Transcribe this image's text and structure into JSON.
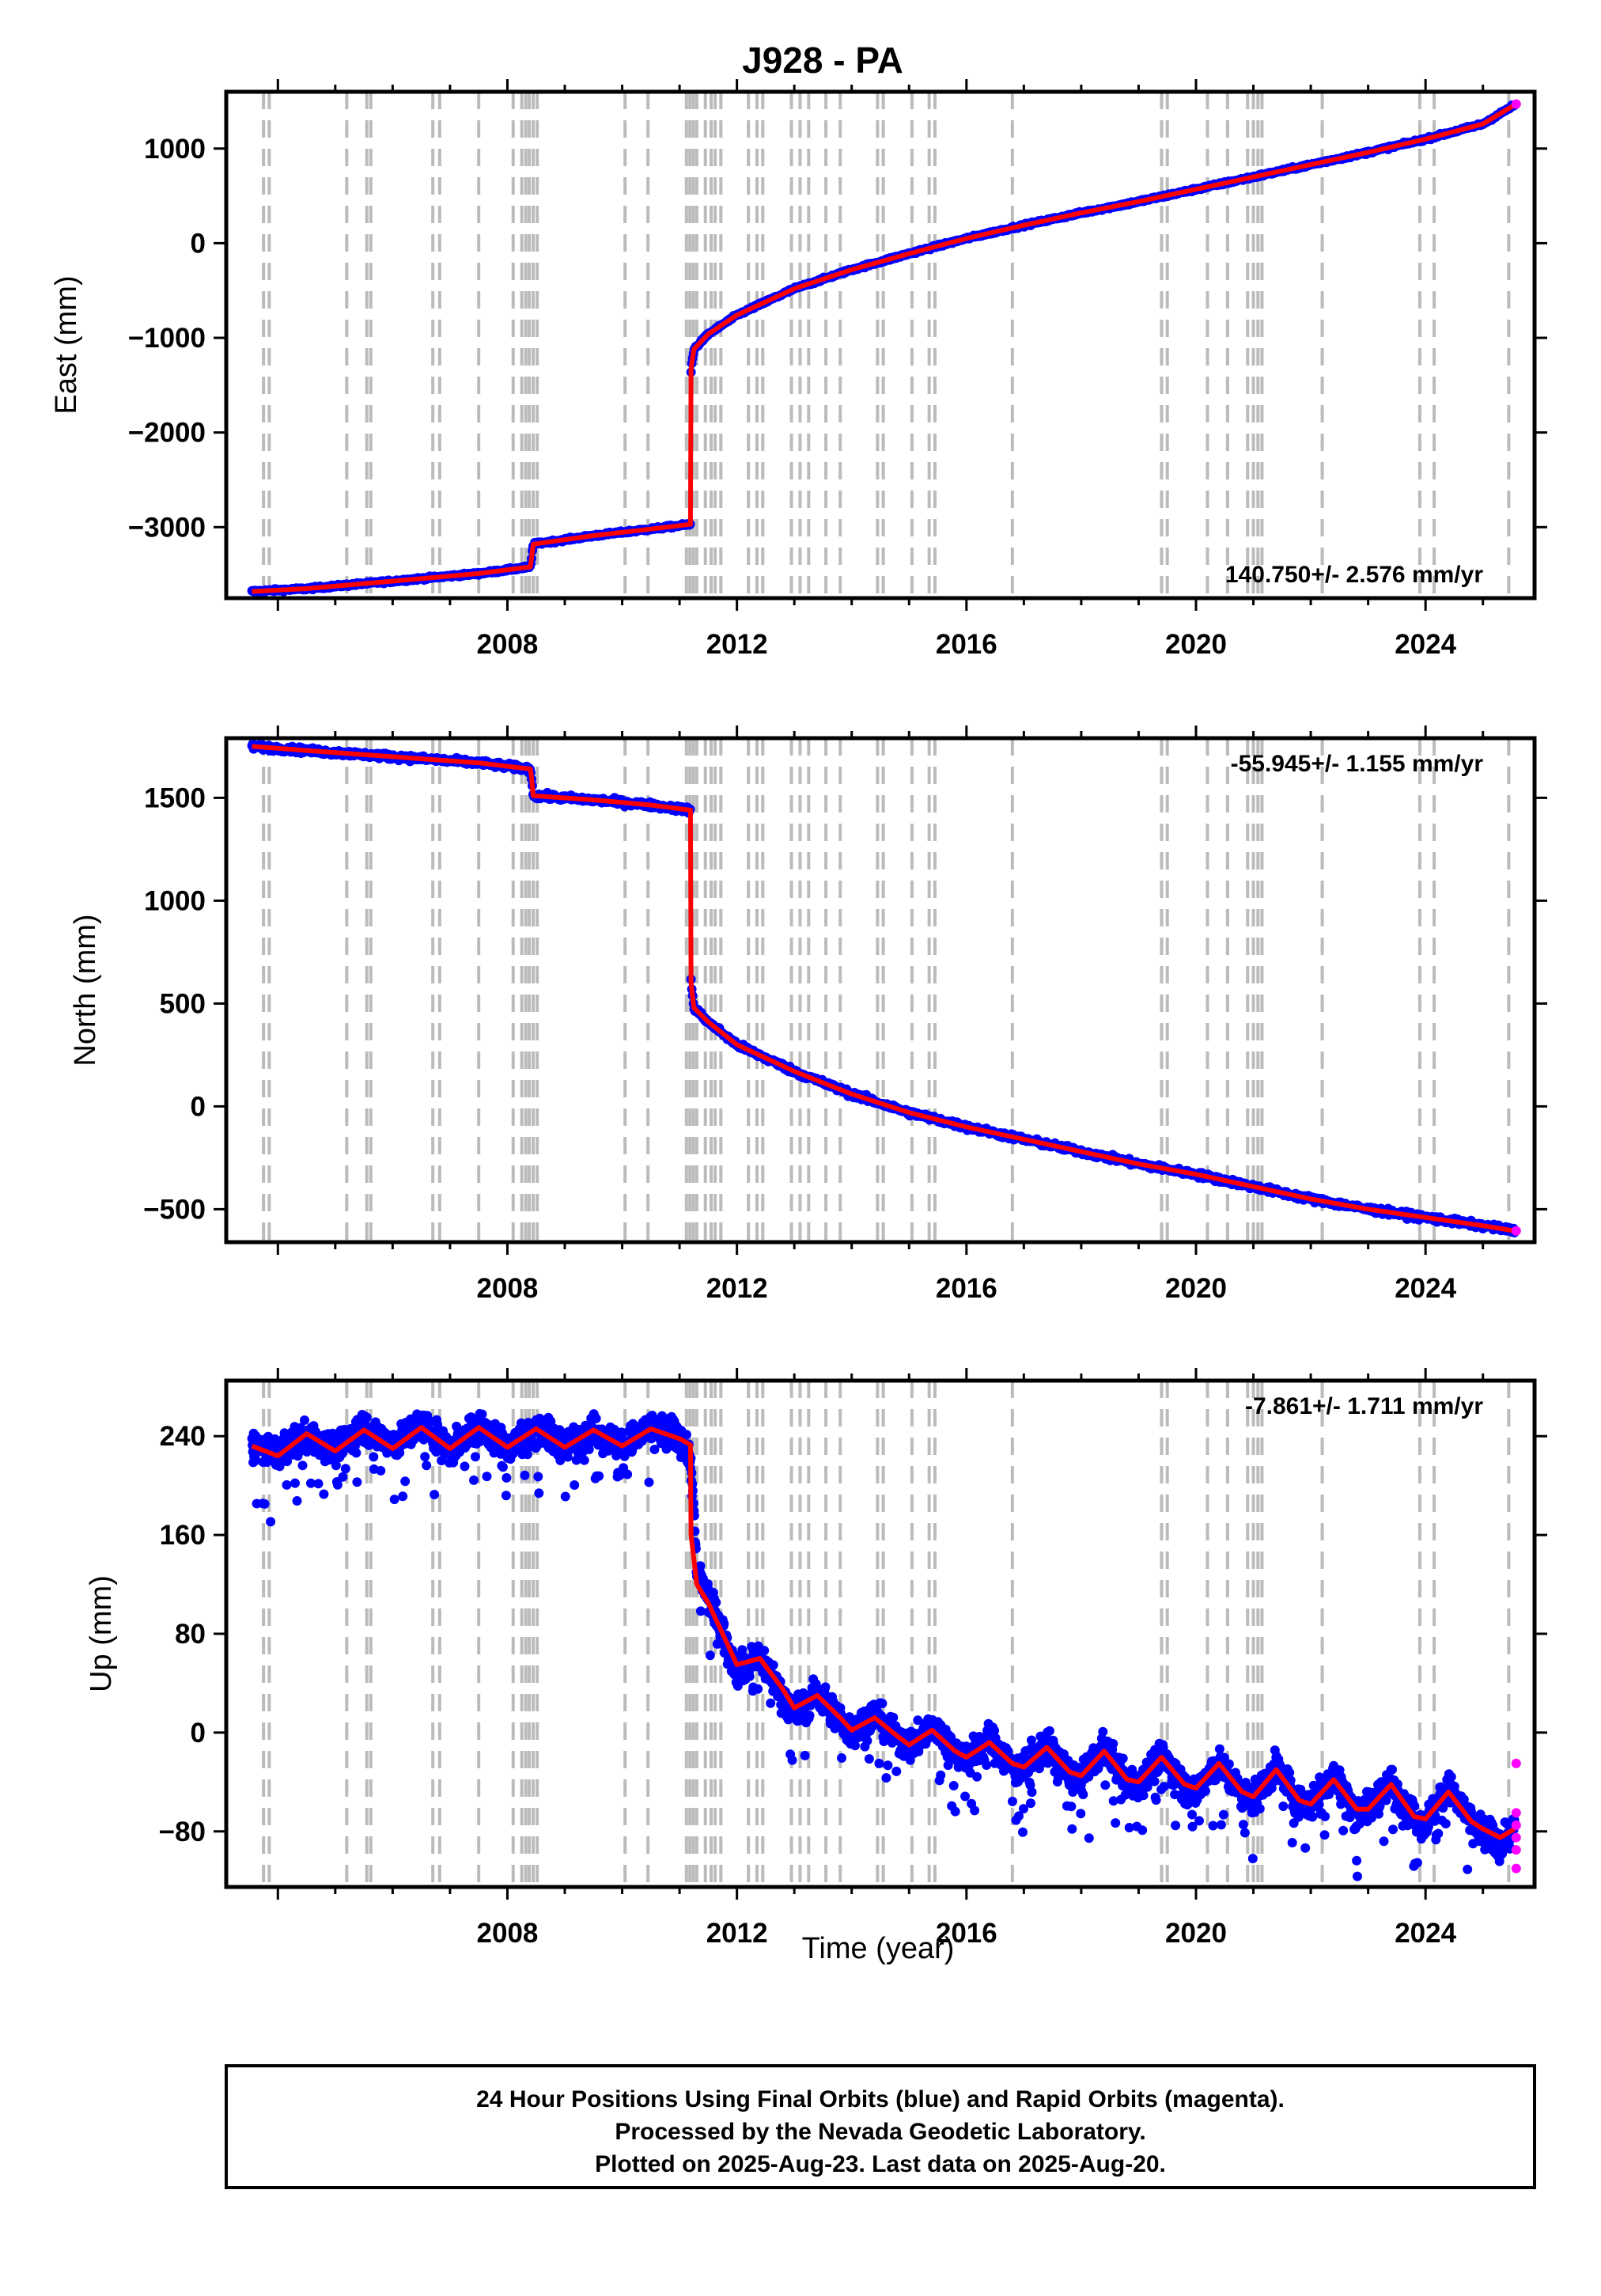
{
  "title": "J928 - PA",
  "xlabel": "Time (year)",
  "footer": {
    "line1": "24 Hour Positions Using Final Orbits (blue) and Rapid Orbits (magenta).",
    "line2": "Processed by the Nevada Geodetic Laboratory.",
    "line3": "Plotted on 2025-Aug-23. Last data on 2025-Aug-20."
  },
  "colors": {
    "final_orbits": "#0000ff",
    "rapid_orbits": "#ff00ff",
    "model_fit": "#ff0000",
    "event_lines": "#bbbbbb",
    "frame": "#000000"
  },
  "chart_data": [
    {
      "type": "scatter",
      "panel": "east",
      "ylabel": "East (mm)",
      "rate_label": "140.750+/- 2.576 mm/yr",
      "xlim": [
        2003.1,
        2025.9
      ],
      "ylim": [
        -3750,
        1600
      ],
      "xticks": [
        2008,
        2012,
        2016,
        2020,
        2024
      ],
      "yticks": [
        1000,
        0,
        -1000,
        -2000,
        -3000
      ],
      "ytick_labels": [
        "1000",
        "0",
        "−1000",
        "−2000",
        "−3000"
      ],
      "series": [
        {
          "role": "final orbits, model fit",
          "x": [
            2003.55,
            2004.5,
            2006.0,
            2007.5,
            2008.4,
            2008.42,
            2008.45,
            2009.5,
            2010.5,
            2011.19,
            2011.2,
            2011.25,
            2011.5,
            2012.0,
            2013.0,
            2014.0,
            2015.0,
            2016.0,
            2017.0,
            2018.0,
            2019.0,
            2020.0,
            2021.0,
            2022.0,
            2023.0,
            2024.0,
            2025.0,
            2025.55
          ],
          "y": [
            -3680,
            -3650,
            -3570,
            -3490,
            -3420,
            -3330,
            -3180,
            -3090,
            -3020,
            -2970,
            -1330,
            -1120,
            -960,
            -760,
            -480,
            -280,
            -110,
            50,
            190,
            320,
            440,
            570,
            700,
            830,
            960,
            1100,
            1260,
            1460
          ]
        },
        {
          "role": "rapid orbits",
          "x": [
            2025.58
          ],
          "y": [
            1470
          ]
        }
      ]
    },
    {
      "type": "scatter",
      "panel": "north",
      "ylabel": "North (mm)",
      "rate_label": "-55.945+/- 1.155 mm/yr",
      "xlim": [
        2003.1,
        2025.9
      ],
      "ylim": [
        -660,
        1790
      ],
      "xticks": [
        2008,
        2012,
        2016,
        2020,
        2024
      ],
      "yticks": [
        1500,
        1000,
        500,
        0,
        -500
      ],
      "ytick_labels": [
        "1500",
        "1000",
        "500",
        "0",
        "−500"
      ],
      "series": [
        {
          "role": "final orbits, model fit",
          "x": [
            2003.55,
            2004.5,
            2006.0,
            2007.5,
            2008.4,
            2008.42,
            2008.45,
            2009.5,
            2010.5,
            2011.19,
            2011.2,
            2011.25,
            2011.5,
            2012.0,
            2013.0,
            2014.0,
            2015.0,
            2016.0,
            2017.0,
            2018.0,
            2019.0,
            2020.0,
            2021.0,
            2022.0,
            2023.0,
            2024.0,
            2025.0,
            2025.55
          ],
          "y": [
            1750,
            1730,
            1700,
            1670,
            1640,
            1600,
            1510,
            1490,
            1465,
            1440,
            600,
            480,
            410,
            300,
            170,
            60,
            -30,
            -100,
            -160,
            -220,
            -280,
            -330,
            -390,
            -450,
            -500,
            -540,
            -580,
            -605
          ]
        },
        {
          "role": "rapid orbits",
          "x": [
            2025.58
          ],
          "y": [
            -605
          ]
        }
      ]
    },
    {
      "type": "scatter",
      "panel": "up",
      "ylabel": "Up (mm)",
      "rate_label": "-7.861+/- 1.711 mm/yr",
      "xlim": [
        2003.1,
        2025.9
      ],
      "ylim": [
        -125,
        285
      ],
      "xticks": [
        2008,
        2012,
        2016,
        2020,
        2024
      ],
      "yticks": [
        240,
        160,
        80,
        0,
        -80
      ],
      "ytick_labels": [
        "240",
        "160",
        "80",
        "0",
        "−80"
      ],
      "series": [
        {
          "role": "final orbits",
          "x": [
            2003.55,
            2004.0,
            2004.5,
            2005.0,
            2005.5,
            2006.0,
            2006.5,
            2007.0,
            2007.5,
            2008.0,
            2008.5,
            2009.0,
            2009.5,
            2010.0,
            2010.5,
            2011.0,
            2011.2,
            2011.3,
            2011.5,
            2011.8,
            2012.0,
            2012.4,
            2012.8,
            2013.0,
            2013.4,
            2013.8,
            2014.0,
            2014.4,
            2014.8,
            2015.0,
            2015.4,
            2015.8,
            2016.0,
            2016.4,
            2016.8,
            2017.0,
            2017.4,
            2017.8,
            2018.0,
            2018.4,
            2018.8,
            2019.0,
            2019.4,
            2019.8,
            2020.0,
            2020.4,
            2020.8,
            2021.0,
            2021.4,
            2021.8,
            2022.0,
            2022.4,
            2022.8,
            2023.0,
            2023.4,
            2023.8,
            2024.0,
            2024.4,
            2024.8,
            2025.0,
            2025.3,
            2025.55
          ],
          "y": [
            232,
            225,
            240,
            230,
            248,
            232,
            250,
            228,
            248,
            230,
            247,
            232,
            245,
            232,
            247,
            240,
            220,
            130,
            110,
            75,
            50,
            62,
            30,
            15,
            32,
            10,
            0,
            15,
            -5,
            -12,
            5,
            -15,
            -22,
            -5,
            -28,
            -30,
            -10,
            -35,
            -38,
            -12,
            -40,
            -42,
            -18,
            -45,
            -48,
            -25,
            -50,
            -55,
            -28,
            -58,
            -58,
            -35,
            -65,
            -62,
            -40,
            -70,
            -72,
            -45,
            -72,
            -80,
            -90,
            -78
          ]
        },
        {
          "role": "rapid orbits",
          "x": [
            2025.58,
            2025.58,
            2025.58,
            2025.58,
            2025.58,
            2025.58
          ],
          "y": [
            -25,
            -65,
            -75,
            -85,
            -95,
            -110
          ]
        },
        {
          "role": "model fit",
          "x": [
            2003.55,
            2004.0,
            2004.5,
            2005.0,
            2005.5,
            2006.0,
            2006.5,
            2007.0,
            2007.5,
            2008.0,
            2008.5,
            2009.0,
            2009.5,
            2010.0,
            2010.5,
            2011.0,
            2011.19,
            2011.2,
            2011.3,
            2011.5,
            2011.8,
            2012.0,
            2012.4,
            2012.8,
            2013.0,
            2013.4,
            2013.8,
            2014.0,
            2014.4,
            2014.8,
            2015.0,
            2015.4,
            2015.8,
            2016.0,
            2016.4,
            2016.8,
            2017.0,
            2017.4,
            2017.8,
            2018.0,
            2018.4,
            2018.8,
            2019.0,
            2019.4,
            2019.8,
            2020.0,
            2020.4,
            2020.8,
            2021.0,
            2021.4,
            2021.8,
            2022.0,
            2022.4,
            2022.8,
            2023.0,
            2023.4,
            2023.8,
            2024.0,
            2024.4,
            2024.8,
            2025.0,
            2025.3,
            2025.55
          ],
          "y": [
            232,
            224,
            242,
            228,
            245,
            230,
            247,
            230,
            247,
            231,
            246,
            231,
            245,
            232,
            246,
            238,
            233,
            160,
            120,
            105,
            75,
            55,
            60,
            35,
            20,
            30,
            12,
            2,
            12,
            -3,
            -10,
            2,
            -15,
            -20,
            -8,
            -25,
            -28,
            -12,
            -32,
            -35,
            -15,
            -38,
            -40,
            -20,
            -42,
            -45,
            -25,
            -48,
            -52,
            -30,
            -55,
            -58,
            -38,
            -62,
            -62,
            -42,
            -68,
            -70,
            -48,
            -72,
            -78,
            -85,
            -78
          ]
        }
      ]
    }
  ]
}
